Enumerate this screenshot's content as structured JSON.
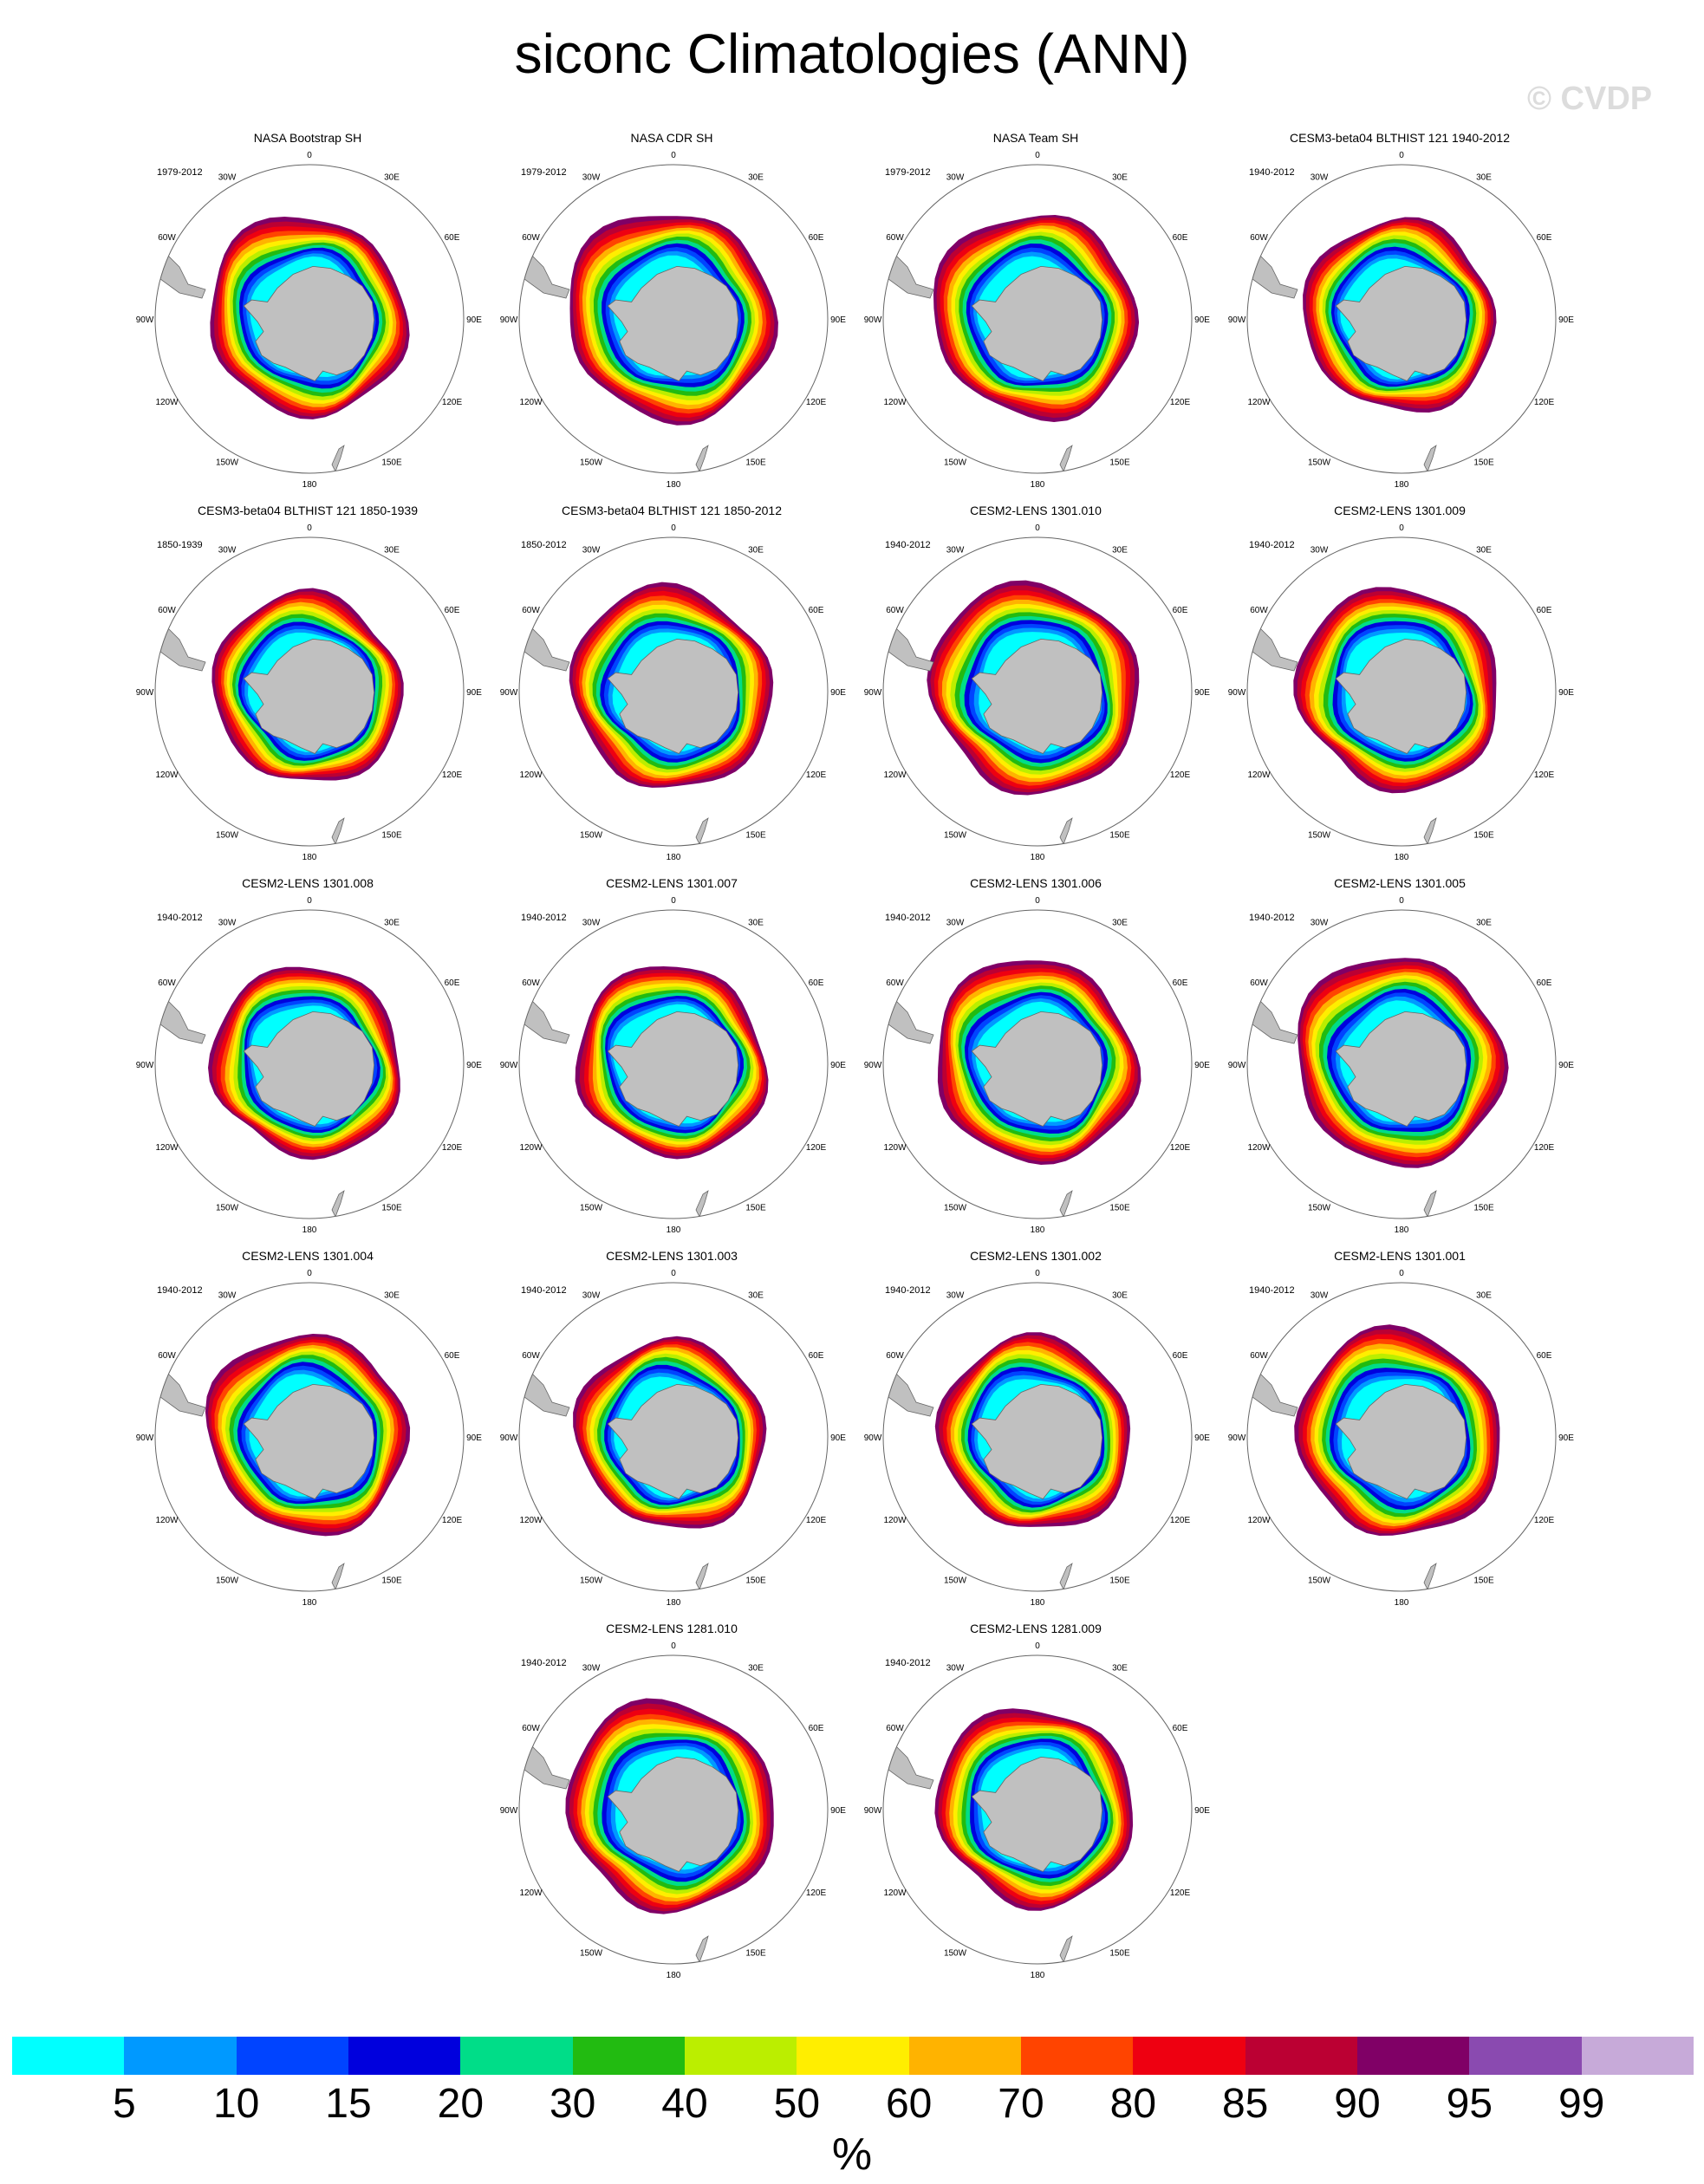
{
  "title": "siconc Climatologies (ANN)",
  "watermark": "© CVDP",
  "map_projection": "south-polar-stereographic",
  "longitude_labels": [
    "0",
    "30E",
    "60E",
    "90E",
    "120E",
    "150E",
    "180",
    "150W",
    "120W",
    "90W",
    "60W",
    "30W"
  ],
  "panels": [
    {
      "title": "NASA Bootstrap SH",
      "period": "1979-2012"
    },
    {
      "title": "NASA CDR SH",
      "period": "1979-2012"
    },
    {
      "title": "NASA Team SH",
      "period": "1979-2012"
    },
    {
      "title": "CESM3-beta04 BLTHIST 121 1940-2012",
      "period": "1940-2012"
    },
    {
      "title": "CESM3-beta04 BLTHIST 121 1850-1939",
      "period": "1850-1939"
    },
    {
      "title": "CESM3-beta04 BLTHIST 121 1850-2012",
      "period": "1850-2012"
    },
    {
      "title": "CESM2-LENS 1301.010",
      "period": "1940-2012"
    },
    {
      "title": "CESM2-LENS 1301.009",
      "period": "1940-2012"
    },
    {
      "title": "CESM2-LENS 1301.008",
      "period": "1940-2012"
    },
    {
      "title": "CESM2-LENS 1301.007",
      "period": "1940-2012"
    },
    {
      "title": "CESM2-LENS 1301.006",
      "period": "1940-2012"
    },
    {
      "title": "CESM2-LENS 1301.005",
      "period": "1940-2012"
    },
    {
      "title": "CESM2-LENS 1301.004",
      "period": "1940-2012"
    },
    {
      "title": "CESM2-LENS 1301.003",
      "period": "1940-2012"
    },
    {
      "title": "CESM2-LENS 1301.002",
      "period": "1940-2012"
    },
    {
      "title": "CESM2-LENS 1301.001",
      "period": "1940-2012"
    },
    {
      "title": "CESM2-LENS 1281.010",
      "period": "1940-2012"
    },
    {
      "title": "CESM2-LENS 1281.009",
      "period": "1940-2012"
    }
  ],
  "colorbar": {
    "labels": [
      "5",
      "10",
      "15",
      "20",
      "30",
      "40",
      "50",
      "60",
      "70",
      "80",
      "85",
      "90",
      "95",
      "99"
    ],
    "colors": [
      "#00ffff",
      "#0099ff",
      "#0044ff",
      "#0000dd",
      "#00dd88",
      "#22bb11",
      "#bbee00",
      "#ffee00",
      "#ffb300",
      "#ff4400",
      "#ee0011",
      "#bb0033",
      "#800066",
      "#8a4ab0",
      "#c7aad9"
    ],
    "units": "%"
  },
  "land_color": "#c0c0c0"
}
